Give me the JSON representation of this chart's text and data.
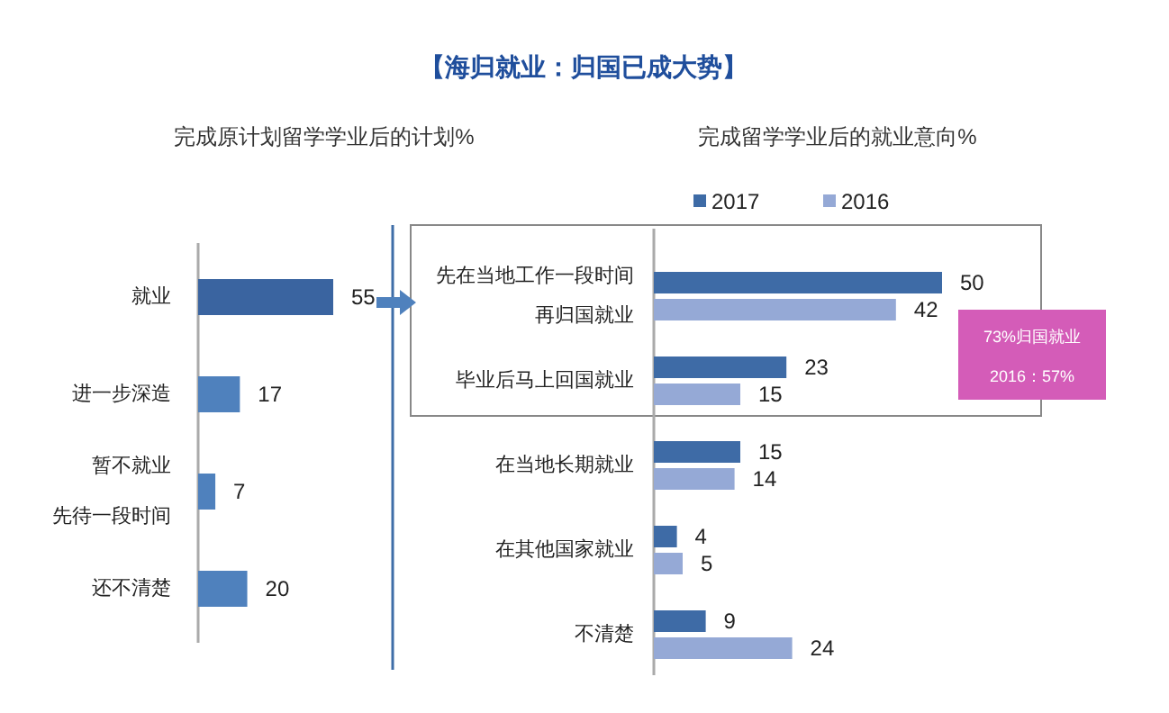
{
  "chart_data": [
    {
      "type": "other",
      "title": "【海归就业：归国已成大势】"
    },
    {
      "type": "bar",
      "orientation": "horizontal",
      "title": "完成原计划留学学业后的计划%",
      "categories": [
        "就业",
        "进一步深造",
        "暂不就业先待一段时间",
        "还不清楚"
      ],
      "values": [
        55,
        17,
        7,
        20
      ],
      "colors": [
        "#3a64a0",
        "#4f81bd",
        "#4f81bd",
        "#4f81bd"
      ],
      "data_labels": true
    },
    {
      "type": "bar",
      "orientation": "horizontal",
      "title": "完成留学学业后的就业意向%",
      "categories": [
        "先在当地工作一段时间再归国就业",
        "毕业后马上回国就业",
        "在当地长期就业",
        "在其他国家就业",
        "不清楚"
      ],
      "series": [
        {
          "name": "2017",
          "color": "#3e6ba6",
          "values": [
            50,
            23,
            15,
            4,
            9
          ]
        },
        {
          "name": "2016",
          "color": "#95a9d6",
          "values": [
            42,
            15,
            14,
            5,
            24
          ]
        }
      ],
      "legend": "top",
      "data_labels": true,
      "annotations": [
        "73%归国就业",
        "2016：57%"
      ]
    }
  ]
}
